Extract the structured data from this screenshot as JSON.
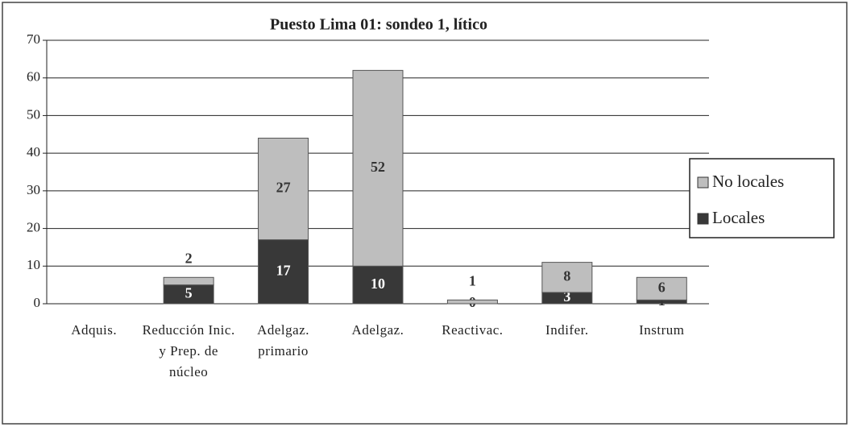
{
  "chart_data": {
    "type": "stacked_bar",
    "title": "Puesto Lima 01: sondeo 1, lítico",
    "categories": [
      "Adquis.",
      "Reducción Inic. y Prep. de núcleo",
      "Adelgaz. primario",
      "Adelgaz.",
      "Reactivac.",
      "Indifer.",
      "Instrum"
    ],
    "series": [
      {
        "name": "Locales",
        "color": "#383838",
        "values": [
          null,
          5,
          17,
          10,
          0,
          3,
          1
        ]
      },
      {
        "name": "No locales",
        "color": "#bebebe",
        "values": [
          null,
          2,
          27,
          52,
          1,
          8,
          6
        ]
      }
    ],
    "ylim": [
      0,
      70
    ],
    "yticks": [
      0,
      10,
      20,
      30,
      40,
      50,
      60,
      70
    ],
    "grid": true,
    "legend": "right"
  }
}
